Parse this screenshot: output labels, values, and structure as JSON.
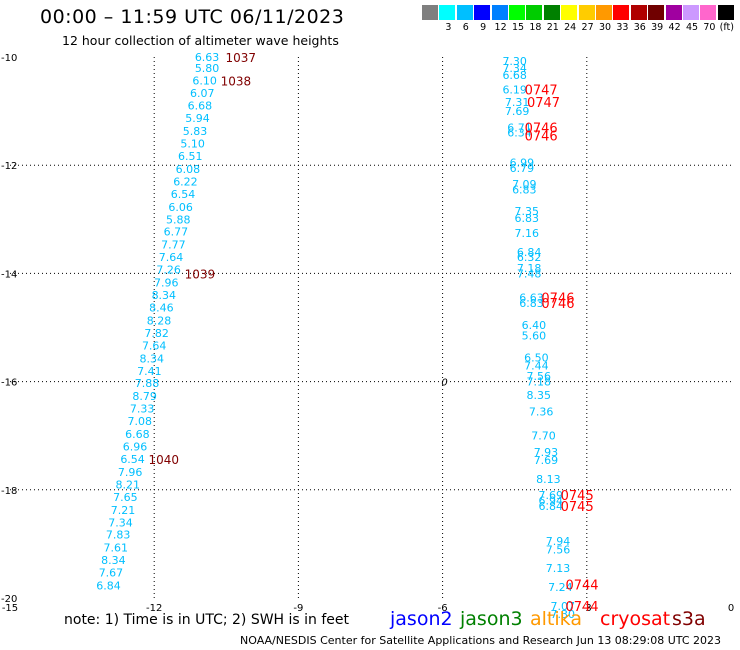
{
  "header": {
    "title": "00:00 – 11:59 UTC 06/11/2023",
    "subtitle": "12 hour collection of altimeter wave heights"
  },
  "colorbar": {
    "swatches": [
      {
        "color": "#7f7f7f",
        "label": ""
      },
      {
        "color": "#00ffff",
        "label": "3"
      },
      {
        "color": "#00bfff",
        "label": "6"
      },
      {
        "color": "#0000ff",
        "label": "9"
      },
      {
        "color": "#0080ff",
        "label": "12"
      },
      {
        "color": "#00ff00",
        "label": "15"
      },
      {
        "color": "#00cc00",
        "label": "18"
      },
      {
        "color": "#008000",
        "label": "21"
      },
      {
        "color": "#ffff00",
        "label": "24"
      },
      {
        "color": "#ffcc00",
        "label": "27"
      },
      {
        "color": "#ff9900",
        "label": "30"
      },
      {
        "color": "#ff0000",
        "label": "33"
      },
      {
        "color": "#b00000",
        "label": "36"
      },
      {
        "color": "#700000",
        "label": "39"
      },
      {
        "color": "#a000a0",
        "label": "42"
      },
      {
        "color": "#cc99ff",
        "label": "45"
      },
      {
        "color": "#ff66cc",
        "label": "70"
      },
      {
        "color": "#000000",
        "label": "(ft)"
      }
    ]
  },
  "note": "note: 1) Time is in UTC; 2) SWH is in feet",
  "satellites": [
    {
      "name": "jason2",
      "color": "#0000ff"
    },
    {
      "name": "jason3",
      "color": "#008000"
    },
    {
      "name": "altika",
      "color": "#ff9900"
    },
    {
      "name": "cryosat",
      "color": "#ff0000"
    },
    {
      "name": "s3a",
      "color": "#800000"
    }
  ],
  "footer": "NOAA/NESDIS Center for Satellite Applications and Research    Jun 13 08:29:08 UTC 2023",
  "chart_data": {
    "type": "scatter",
    "xlim": [
      -15,
      0
    ],
    "ylim": [
      -20,
      -10
    ],
    "xticks": [
      "-15",
      "-12",
      "-9",
      "-6",
      "-3",
      "0"
    ],
    "yticks": [
      "-10",
      "-12",
      "-14",
      "-16",
      "-18",
      "-20"
    ],
    "grid": true,
    "colors": {
      "swh": "#00bfff",
      "time_s3a": "#800000",
      "time_cryosat": "#ff0000"
    },
    "track_west": [
      {
        "x": -10.9,
        "y": -10.0,
        "v": "6.63"
      },
      {
        "x": -10.9,
        "y": -10.2,
        "v": "5.80"
      },
      {
        "x": -10.95,
        "y": -10.43,
        "v": "6.10"
      },
      {
        "x": -11.0,
        "y": -10.67,
        "v": "6.07"
      },
      {
        "x": -11.05,
        "y": -10.9,
        "v": "6.68"
      },
      {
        "x": -11.1,
        "y": -11.13,
        "v": "5.94"
      },
      {
        "x": -11.15,
        "y": -11.37,
        "v": "5.83"
      },
      {
        "x": -11.2,
        "y": -11.6,
        "v": "5.10"
      },
      {
        "x": -11.25,
        "y": -11.83,
        "v": "6.51"
      },
      {
        "x": -11.3,
        "y": -12.07,
        "v": "6.08"
      },
      {
        "x": -11.35,
        "y": -12.3,
        "v": "6.22"
      },
      {
        "x": -11.4,
        "y": -12.53,
        "v": "6.54"
      },
      {
        "x": -11.45,
        "y": -12.77,
        "v": "6.06"
      },
      {
        "x": -11.5,
        "y": -13.0,
        "v": "5.88"
      },
      {
        "x": -11.55,
        "y": -13.23,
        "v": "6.77"
      },
      {
        "x": -11.6,
        "y": -13.47,
        "v": "7.77"
      },
      {
        "x": -11.65,
        "y": -13.7,
        "v": "7.64"
      },
      {
        "x": -11.7,
        "y": -13.93,
        "v": "7.26"
      },
      {
        "x": -11.75,
        "y": -14.17,
        "v": "7.96"
      },
      {
        "x": -11.8,
        "y": -14.4,
        "v": "8.34"
      },
      {
        "x": -11.85,
        "y": -14.63,
        "v": "8.46"
      },
      {
        "x": -11.9,
        "y": -14.87,
        "v": "8.28"
      },
      {
        "x": -11.95,
        "y": -15.1,
        "v": "7.82"
      },
      {
        "x": -12.0,
        "y": -15.33,
        "v": "7.64"
      },
      {
        "x": -12.05,
        "y": -15.57,
        "v": "8.34"
      },
      {
        "x": -12.1,
        "y": -15.8,
        "v": "7.41"
      },
      {
        "x": -12.15,
        "y": -16.03,
        "v": "7.88"
      },
      {
        "x": -12.2,
        "y": -16.27,
        "v": "8.79"
      },
      {
        "x": -12.25,
        "y": -16.5,
        "v": "7.33"
      },
      {
        "x": -12.3,
        "y": -16.73,
        "v": "7.08"
      },
      {
        "x": -12.35,
        "y": -16.97,
        "v": "6.68"
      },
      {
        "x": -12.4,
        "y": -17.2,
        "v": "6.96"
      },
      {
        "x": -12.45,
        "y": -17.43,
        "v": "6.54"
      },
      {
        "x": -12.5,
        "y": -17.67,
        "v": "7.96"
      },
      {
        "x": -12.55,
        "y": -17.9,
        "v": "8.21"
      },
      {
        "x": -12.6,
        "y": -18.13,
        "v": "7.65"
      },
      {
        "x": -12.65,
        "y": -18.37,
        "v": "7.21"
      },
      {
        "x": -12.7,
        "y": -18.6,
        "v": "7.34"
      },
      {
        "x": -12.75,
        "y": -18.83,
        "v": "7.83"
      },
      {
        "x": -12.8,
        "y": -19.07,
        "v": "7.61"
      },
      {
        "x": -12.85,
        "y": -19.3,
        "v": "8.34"
      },
      {
        "x": -12.9,
        "y": -19.53,
        "v": "7.67"
      },
      {
        "x": -12.95,
        "y": -19.77,
        "v": "6.84"
      }
    ],
    "track_east": [
      {
        "x": -4.5,
        "y": -10.07,
        "v": "7.30"
      },
      {
        "x": -4.5,
        "y": -10.2,
        "v": "7.34"
      },
      {
        "x": -4.5,
        "y": -10.33,
        "v": "6.68"
      },
      {
        "x": -4.5,
        "y": -10.6,
        "v": "6.19"
      },
      {
        "x": -4.45,
        "y": -10.83,
        "v": "7.31"
      },
      {
        "x": -4.45,
        "y": -11.0,
        "v": "7.69"
      },
      {
        "x": -4.4,
        "y": -11.3,
        "v": "6.71"
      },
      {
        "x": -4.4,
        "y": -11.4,
        "v": "6.34"
      },
      {
        "x": -4.35,
        "y": -11.95,
        "v": "6.99"
      },
      {
        "x": -4.35,
        "y": -12.05,
        "v": "6.79"
      },
      {
        "x": -4.3,
        "y": -12.35,
        "v": "7.09"
      },
      {
        "x": -4.3,
        "y": -12.45,
        "v": "6.83"
      },
      {
        "x": -4.25,
        "y": -12.85,
        "v": "7.35"
      },
      {
        "x": -4.25,
        "y": -12.98,
        "v": "6.83"
      },
      {
        "x": -4.25,
        "y": -13.25,
        "v": "7.16"
      },
      {
        "x": -4.2,
        "y": -13.6,
        "v": "6.84"
      },
      {
        "x": -4.2,
        "y": -13.7,
        "v": "6.32"
      },
      {
        "x": -4.2,
        "y": -13.9,
        "v": "7.18"
      },
      {
        "x": -4.2,
        "y": -14.0,
        "v": "7.48"
      },
      {
        "x": -4.15,
        "y": -14.45,
        "v": "6.63"
      },
      {
        "x": -4.15,
        "y": -14.55,
        "v": "6.83"
      },
      {
        "x": -4.1,
        "y": -14.95,
        "v": "6.40"
      },
      {
        "x": -4.1,
        "y": -15.15,
        "v": "5.60"
      },
      {
        "x": -4.05,
        "y": -15.55,
        "v": "6.50"
      },
      {
        "x": -4.05,
        "y": -15.7,
        "v": "7.44"
      },
      {
        "x": -4.0,
        "y": -15.9,
        "v": "7.56"
      },
      {
        "x": -4.0,
        "y": -16.0,
        "v": "7.18"
      },
      {
        "x": -4.0,
        "y": -16.25,
        "v": "8.35"
      },
      {
        "x": -3.95,
        "y": -16.55,
        "v": "7.36"
      },
      {
        "x": -3.9,
        "y": -17.0,
        "v": "7.70"
      },
      {
        "x": -3.85,
        "y": -17.3,
        "v": "7.93"
      },
      {
        "x": -3.85,
        "y": -17.45,
        "v": "7.69"
      },
      {
        "x": -3.8,
        "y": -17.8,
        "v": "8.13"
      },
      {
        "x": -3.75,
        "y": -18.1,
        "v": "7.69"
      },
      {
        "x": -3.75,
        "y": -18.2,
        "v": "6.94"
      },
      {
        "x": -3.75,
        "y": -18.3,
        "v": "6.84"
      },
      {
        "x": -3.6,
        "y": -18.95,
        "v": "7.94"
      },
      {
        "x": -3.6,
        "y": -19.1,
        "v": "7.56"
      },
      {
        "x": -3.6,
        "y": -19.45,
        "v": "7.13"
      },
      {
        "x": -3.55,
        "y": -19.8,
        "v": "7.24"
      },
      {
        "x": -3.5,
        "y": -20.15,
        "v": "7.07"
      },
      {
        "x": -3.5,
        "y": -20.3,
        "v": "7.30"
      }
    ],
    "time_labels": [
      {
        "x": -10.2,
        "y": -10.0,
        "t": "1037",
        "sat": "s3a"
      },
      {
        "x": -10.3,
        "y": -10.43,
        "t": "1038",
        "sat": "s3a"
      },
      {
        "x": -11.05,
        "y": -14.0,
        "t": "1039",
        "sat": "s3a"
      },
      {
        "x": -11.8,
        "y": -17.43,
        "t": "1040",
        "sat": "s3a"
      },
      {
        "x": -3.95,
        "y": -10.6,
        "t": "0747",
        "sat": "cryosat"
      },
      {
        "x": -3.9,
        "y": -10.83,
        "t": "0747",
        "sat": "cryosat"
      },
      {
        "x": -3.95,
        "y": -11.3,
        "t": "0746",
        "sat": "cryosat"
      },
      {
        "x": -3.95,
        "y": -11.45,
        "t": "0746",
        "sat": "cryosat"
      },
      {
        "x": -3.6,
        "y": -14.45,
        "t": "0746",
        "sat": "cryosat"
      },
      {
        "x": -3.6,
        "y": -14.55,
        "t": "0746",
        "sat": "cryosat"
      },
      {
        "x": -3.2,
        "y": -18.1,
        "t": "0745",
        "sat": "cryosat"
      },
      {
        "x": -3.2,
        "y": -18.3,
        "t": "0745",
        "sat": "cryosat"
      },
      {
        "x": -3.1,
        "y": -19.75,
        "t": "0744",
        "sat": "cryosat"
      },
      {
        "x": -3.1,
        "y": -20.15,
        "t": "0744",
        "sat": "cryosat"
      }
    ],
    "markers": [
      {
        "x": -6.0,
        "y": -16.0,
        "t": "0"
      }
    ]
  }
}
